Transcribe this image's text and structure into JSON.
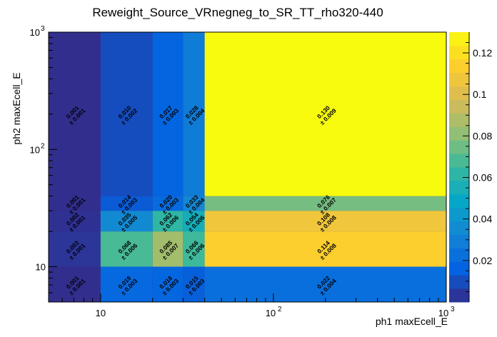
{
  "chart_data": {
    "type": "heatmap",
    "title": "Reweight_Source_VRnegneg_to_SR_TT_rho320-440",
    "xlabel": "ph1 maxEcell_E",
    "ylabel": "ph2 maxEcell_E",
    "x_scale": "log",
    "y_scale": "log",
    "xlim": [
      5,
      1000
    ],
    "ylim": [
      5,
      1000
    ],
    "x_bin_edges": [
      5,
      10,
      20,
      30,
      40,
      1000
    ],
    "y_bin_edges": [
      5,
      10,
      20,
      30,
      40,
      1000
    ],
    "x_ticks": [
      {
        "value": 10,
        "base": "10",
        "exp": ""
      },
      {
        "value": 100,
        "base": "10",
        "exp": "2"
      },
      {
        "value": 1000,
        "base": "10",
        "exp": "3"
      }
    ],
    "y_ticks": [
      {
        "value": 10,
        "base": "10",
        "exp": ""
      },
      {
        "value": 100,
        "base": "10",
        "exp": "2"
      },
      {
        "value": 1000,
        "base": "10",
        "exp": "3"
      }
    ],
    "zlim": [
      0,
      0.13
    ],
    "colorbar_ticks": [
      "0.02",
      "0.04",
      "0.06",
      "0.08",
      "0.1",
      "0.12"
    ],
    "colorbar_tick_values": [
      0.02,
      0.04,
      0.06,
      0.08,
      0.1,
      0.12
    ],
    "cells": [
      {
        "ix": 0,
        "iy": 0,
        "value": 0.001,
        "label": "0.001",
        "error": "± 0.001"
      },
      {
        "ix": 1,
        "iy": 0,
        "value": 0.019,
        "label": "0.019",
        "error": "± 0.003"
      },
      {
        "ix": 2,
        "iy": 0,
        "value": 0.018,
        "label": "0.018",
        "error": "± 0.003"
      },
      {
        "ix": 3,
        "iy": 0,
        "value": 0.015,
        "label": "0.015",
        "error": "± 0.003"
      },
      {
        "ix": 4,
        "iy": 0,
        "value": 0.022,
        "label": "0.022",
        "error": "± 0.004"
      },
      {
        "ix": 0,
        "iy": 1,
        "value": 0.003,
        "label": "0.003",
        "error": "± 0.001"
      },
      {
        "ix": 1,
        "iy": 1,
        "value": 0.068,
        "label": "0.068",
        "error": "± 0.006"
      },
      {
        "ix": 2,
        "iy": 1,
        "value": 0.085,
        "label": "0.085",
        "error": "± 0.007"
      },
      {
        "ix": 3,
        "iy": 1,
        "value": 0.066,
        "label": "0.066",
        "error": "± 0.006"
      },
      {
        "ix": 4,
        "iy": 1,
        "value": 0.114,
        "label": "0.114",
        "error": "± 0.008"
      },
      {
        "ix": 0,
        "iy": 2,
        "value": 0.002,
        "label": "0.002",
        "error": "± 0.001"
      },
      {
        "ix": 1,
        "iy": 2,
        "value": 0.035,
        "label": "0.035",
        "error": "± 0.005"
      },
      {
        "ix": 2,
        "iy": 2,
        "value": 0.062,
        "label": "0.062",
        "error": "± 0.006"
      },
      {
        "ix": 3,
        "iy": 2,
        "value": 0.054,
        "label": "0.054",
        "error": "± 0.006"
      },
      {
        "ix": 4,
        "iy": 2,
        "value": 0.108,
        "label": "0.108",
        "error": "± 0.008"
      },
      {
        "ix": 0,
        "iy": 3,
        "value": 0.001,
        "label": "0.001",
        "error": "± 0.001"
      },
      {
        "ix": 1,
        "iy": 3,
        "value": 0.014,
        "label": "0.014",
        "error": "± 0.003"
      },
      {
        "ix": 2,
        "iy": 3,
        "value": 0.02,
        "label": "0.020",
        "error": "± 0.003"
      },
      {
        "ix": 3,
        "iy": 3,
        "value": 0.033,
        "label": "0.033",
        "error": "± 0.004"
      },
      {
        "ix": 4,
        "iy": 3,
        "value": 0.076,
        "label": "0.076",
        "error": "± 0.007"
      },
      {
        "ix": 0,
        "iy": 4,
        "value": 0.001,
        "label": "0.001",
        "error": "± 0.001"
      },
      {
        "ix": 1,
        "iy": 4,
        "value": 0.01,
        "label": "0.010",
        "error": "± 0.002"
      },
      {
        "ix": 2,
        "iy": 4,
        "value": 0.017,
        "label": "0.017",
        "error": "± 0.003"
      },
      {
        "ix": 3,
        "iy": 4,
        "value": 0.028,
        "label": "0.028",
        "error": "± 0.004"
      },
      {
        "ix": 4,
        "iy": 4,
        "value": 0.13,
        "label": "0.130",
        "error": "± 0.009"
      }
    ],
    "palette": [
      "#352a87",
      "#0363e1",
      "#1485d4",
      "#06a7c6",
      "#38b99e",
      "#92bf73",
      "#d9ba56",
      "#fcce2e",
      "#f9fb0e"
    ]
  }
}
